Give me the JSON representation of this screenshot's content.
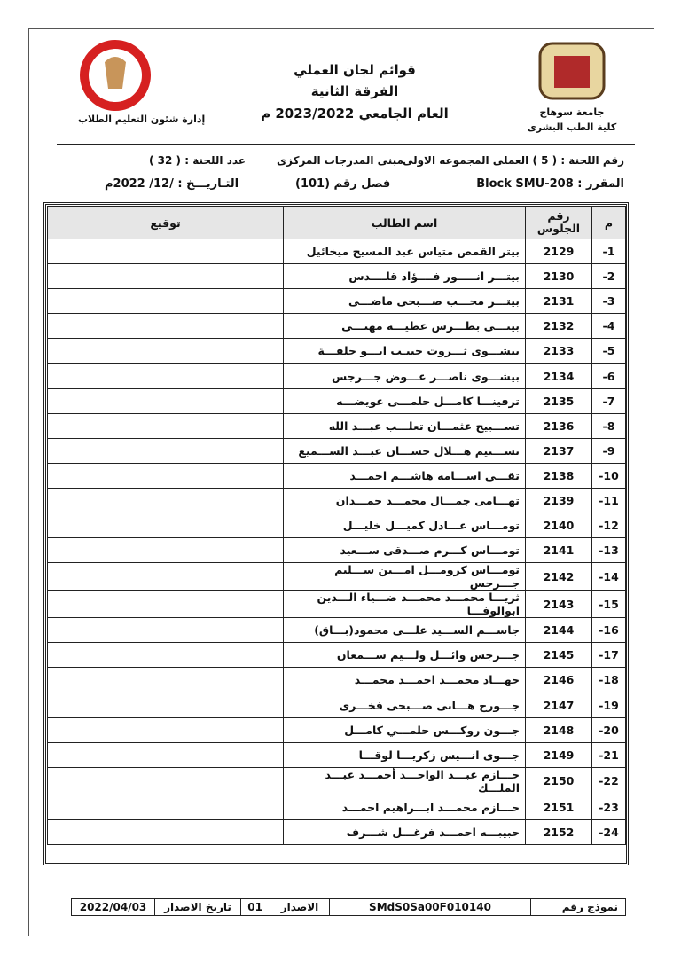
{
  "header": {
    "university": "جامعة سوهاج",
    "faculty": "كلية الطب البشرى",
    "title": "قوائم لجان العملي",
    "year_group": "الفرقة الثانية",
    "academic_year": "العام الجامعي 2023/2022 م",
    "department": "إدارة شئون التعليم الطلاب"
  },
  "info": {
    "committee": "رقم اللجنة : ( 5 ) العملى المجموعه الاولى",
    "building": "مبنى المدرجات المركزى",
    "count": "عدد اللجنة : ( 32 )",
    "course": "المقرر : Block SMU-208",
    "room": "فصل رقم (101)",
    "date": "التـاريـــخ :   /12/ 2022م"
  },
  "table": {
    "columns": [
      "م",
      "رقم الجلوس",
      "اسم الطالب",
      "توقيع"
    ],
    "rows": [
      {
        "no": "-1",
        "seat": 2129,
        "name": "بيتر القمص متياس عبد المسيح ميخائيل"
      },
      {
        "no": "-2",
        "seat": 2130,
        "name": "بيتـــر انـــــور فــــؤاد قلــــدس"
      },
      {
        "no": "-3",
        "seat": 2131,
        "name": "بيتـــر محـــب صـــبحى ماضـــى"
      },
      {
        "no": "-4",
        "seat": 2132,
        "name": "بيتـــى بطـــرس عطيـــه مهنـــى"
      },
      {
        "no": "-5",
        "seat": 2133,
        "name": "بيشـــوى ثـــروت حبيـب ابـــو حلقـــة"
      },
      {
        "no": "-6",
        "seat": 2134,
        "name": "بيشـــوى ناصـــر عـــوض جـــرجس"
      },
      {
        "no": "-7",
        "seat": 2135,
        "name": "ترفينـــا كامـــل حلمـــى عويضـــه"
      },
      {
        "no": "-8",
        "seat": 2136,
        "name": "تســـبيح عثمـــان تعلـــب عبـــد الله"
      },
      {
        "no": "-9",
        "seat": 2137,
        "name": "تســـنيم هـــلال حســـان عبـــد الســـميع"
      },
      {
        "no": "-10",
        "seat": 2138,
        "name": "تقـــى اســـامه هاشـــم احمـــد"
      },
      {
        "no": "-11",
        "seat": 2139,
        "name": "تهـــامى جمـــال محمـــد حمـــدان"
      },
      {
        "no": "-12",
        "seat": 2140,
        "name": "تومـــاس عـــادل كميـــل خليـــل"
      },
      {
        "no": "-13",
        "seat": 2141,
        "name": "تومـــاس كـــرم صـــدقى ســـعيد"
      },
      {
        "no": "-14",
        "seat": 2142,
        "name": "تومـــاس كرومـــل امـــين ســـليم جـــرجس"
      },
      {
        "no": "-15",
        "seat": 2143,
        "name": "ثريـــا محمـــد محمـــد ضـــياء الـــدين ابوالوفـــا"
      },
      {
        "no": "-16",
        "seat": 2144,
        "name": "جاســـم الســـيد علـــى محمود(بـــاق)"
      },
      {
        "no": "-17",
        "seat": 2145,
        "name": "جـــرجس وائـــل ولـــيم ســـمعان"
      },
      {
        "no": "-18",
        "seat": 2146,
        "name": "جهـــاد محمـــد احمـــد محمـــد"
      },
      {
        "no": "-19",
        "seat": 2147,
        "name": "جـــورج هـــانى صـــبحى فخـــرى"
      },
      {
        "no": "-20",
        "seat": 2148,
        "name": "جـــون روكـــس حلمـــي كامـــل"
      },
      {
        "no": "-21",
        "seat": 2149,
        "name": "جـــوى انـــيس زكريـــا لوقـــا"
      },
      {
        "no": "-22",
        "seat": 2150,
        "name": "حـــازم عبـــد الواحـــد أحمـــد عبـــد الملـــك"
      },
      {
        "no": "-23",
        "seat": 2151,
        "name": "حـــازم محمـــد ابـــراهيم احمـــد"
      },
      {
        "no": "-24",
        "seat": 2152,
        "name": "حبيبـــه احمـــد فرغـــل شـــرف"
      }
    ]
  },
  "footer": {
    "form_label": "نموذج رقم",
    "form_no": "SMdS0Sa00F010140",
    "issue_label": "الاصدار",
    "issue_no": "01",
    "date_label": "تاريخ الاصدار",
    "date": "2022/04/03"
  }
}
